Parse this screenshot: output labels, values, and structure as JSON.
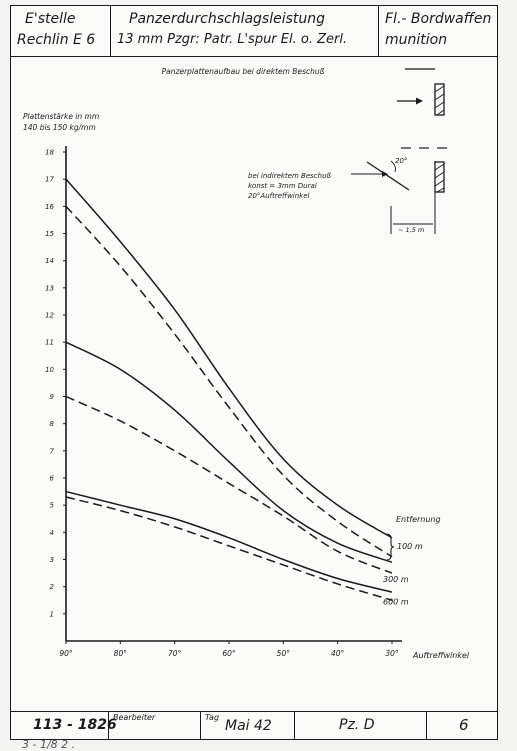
{
  "header": {
    "cell1_line1": "E'stelle",
    "cell1_line2": "Rechlin E 6",
    "cell2_line1": "Panzerdurchschlagsleistung",
    "cell2_line2": "13 mm Pzgr: Patr. L'spur El. o. Zerl.",
    "cell3_line1": "Fl.- Bordwaffen",
    "cell3_line2": "munition"
  },
  "chart_data": {
    "type": "line",
    "title": "Panzerplattenaufbau bei direktem Beschuß",
    "ylabel": "Plattenstärke in mm\n140 bis 150 kg/mm",
    "xlabel": "Auftreffwinkel",
    "x_ticks": [
      "90°",
      "80°",
      "70°",
      "60°",
      "50°",
      "40°",
      "30°"
    ],
    "y_ticks": [
      "1",
      "2",
      "3",
      "4",
      "5",
      "6",
      "7",
      "8",
      "9",
      "10",
      "11",
      "12",
      "13",
      "14",
      "15",
      "16",
      "17",
      "18"
    ],
    "xlim": [
      90,
      30
    ],
    "ylim": [
      0,
      18
    ],
    "x": [
      90,
      80,
      70,
      60,
      50,
      40,
      30
    ],
    "legend_title": "Entfernung",
    "series": [
      {
        "name": "100 m",
        "style": "solid",
        "values": [
          17.0,
          14.7,
          12.2,
          9.3,
          6.7,
          5.0,
          3.8
        ]
      },
      {
        "name": "100 m",
        "style": "dashed",
        "values": [
          16.0,
          13.8,
          11.3,
          8.6,
          6.1,
          4.4,
          3.1
        ]
      },
      {
        "name": "300 m",
        "style": "solid",
        "values": [
          11.0,
          10.0,
          8.5,
          6.6,
          4.8,
          3.6,
          2.9
        ]
      },
      {
        "name": "300 m",
        "style": "dashed",
        "values": [
          9.0,
          8.1,
          7.0,
          5.8,
          4.6,
          3.3,
          2.5
        ]
      },
      {
        "name": "600 m",
        "style": "solid",
        "values": [
          5.5,
          5.0,
          4.5,
          3.8,
          3.0,
          2.3,
          1.8
        ]
      },
      {
        "name": "600 m",
        "style": "dashed",
        "values": [
          5.3,
          4.8,
          4.2,
          3.5,
          2.8,
          2.1,
          1.5
        ]
      }
    ],
    "series_labels": [
      "100 m",
      "300 m",
      "600 m"
    ],
    "annotations": {
      "indirect_line1": "bei indirektem Beschuß",
      "indirect_line2": "konst = 3mm Dural",
      "indirect_line3": "20°Auftreffwinkel",
      "angle_label": "20°",
      "distance_label": "~ 1,5 m"
    }
  },
  "footer": {
    "doc_number": "113 - 1826",
    "bearbeiter_label": "Bearbeiter",
    "tag_label": "Tag",
    "tag_value": "Mai 42",
    "pz_value": "Pz. D",
    "page_value": "6"
  },
  "under_text": "3 - 1/8 2 ."
}
